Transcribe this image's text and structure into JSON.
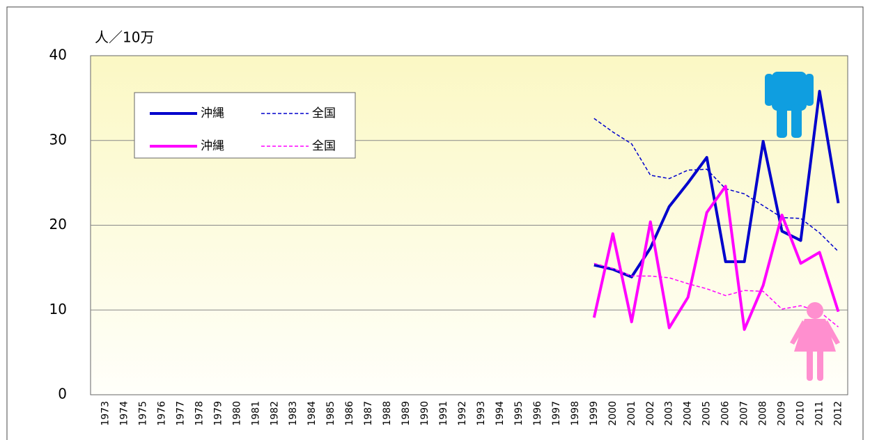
{
  "chart_data": {
    "type": "line",
    "y_label": "人／10万",
    "categories": [
      "1973",
      "1974",
      "1975",
      "1976",
      "1977",
      "1978",
      "1979",
      "1980",
      "1981",
      "1982",
      "1983",
      "1984",
      "1985",
      "1986",
      "1987",
      "1988",
      "1989",
      "1990",
      "1991",
      "1992",
      "1993",
      "1994",
      "1995",
      "1996",
      "1997",
      "1998",
      "1999",
      "2000",
      "2001",
      "2002",
      "2003",
      "2004",
      "2005",
      "2006",
      "2007",
      "2008",
      "2009",
      "2010",
      "2011",
      "2012"
    ],
    "series": [
      {
        "name": "沖縄",
        "color": "#0000cc",
        "style": "solid",
        "values": [
          null,
          null,
          null,
          null,
          null,
          null,
          null,
          null,
          null,
          null,
          null,
          null,
          null,
          null,
          null,
          null,
          null,
          null,
          null,
          null,
          null,
          null,
          null,
          null,
          null,
          null,
          15.3,
          14.8,
          13.9,
          17.3,
          22.2,
          25.0,
          28.0,
          15.7,
          15.7,
          29.9,
          19.3,
          18.2,
          35.8,
          22.6
        ]
      },
      {
        "name": "全国",
        "color": "#0000cc",
        "style": "dashed",
        "values": [
          null,
          null,
          null,
          null,
          null,
          null,
          null,
          null,
          null,
          null,
          null,
          null,
          null,
          null,
          null,
          null,
          null,
          null,
          null,
          null,
          null,
          null,
          null,
          null,
          null,
          null,
          32.6,
          31.0,
          29.6,
          25.9,
          25.5,
          26.5,
          26.6,
          24.3,
          23.7,
          22.3,
          20.9,
          20.8,
          19.1,
          16.9
        ]
      },
      {
        "name": "沖縄",
        "color": "#ff00ff",
        "style": "solid",
        "values": [
          null,
          null,
          null,
          null,
          null,
          null,
          null,
          null,
          null,
          null,
          null,
          null,
          null,
          null,
          null,
          null,
          null,
          null,
          null,
          null,
          null,
          null,
          null,
          null,
          null,
          null,
          9.1,
          19.0,
          8.6,
          20.4,
          7.9,
          11.5,
          21.5,
          24.6,
          7.7,
          12.9,
          21.2,
          15.5,
          16.8,
          9.8
        ]
      },
      {
        "name": "全国",
        "color": "#ff00ff",
        "style": "dashed",
        "values": [
          null,
          null,
          null,
          null,
          null,
          null,
          null,
          null,
          null,
          null,
          null,
          null,
          null,
          null,
          null,
          null,
          null,
          null,
          null,
          null,
          null,
          null,
          null,
          null,
          null,
          null,
          15.5,
          14.9,
          14.0,
          14.0,
          13.8,
          13.1,
          12.5,
          11.7,
          12.3,
          12.2,
          10.1,
          10.5,
          9.8,
          8.0
        ]
      }
    ],
    "ylim": [
      0,
      40
    ],
    "yticks": [
      0,
      10,
      20,
      30,
      40
    ],
    "grid": true
  }
}
